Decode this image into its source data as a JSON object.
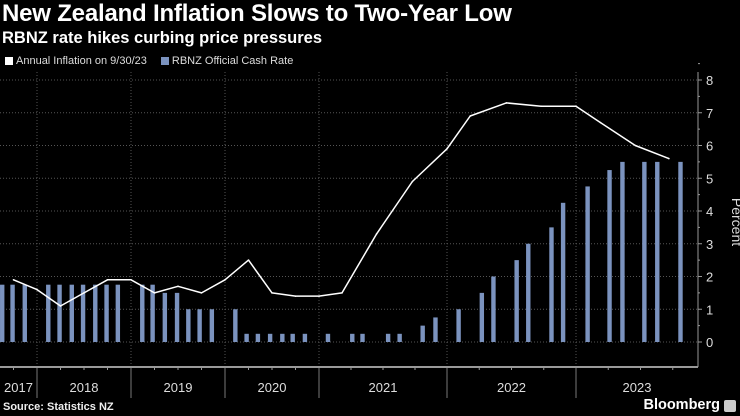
{
  "header": {
    "title": "New Zealand Inflation Slows to Two-Year Low",
    "subtitle": "RBNZ rate hikes curbing price pressures"
  },
  "footer": {
    "source": "Source: Statistics NZ",
    "brand": "Bloomberg"
  },
  "colors": {
    "inflation": "#ffffff",
    "cash_rate": "#7b93bf",
    "grid": "#555555",
    "axis": "#999999"
  },
  "chart_data": {
    "type": "bar+line",
    "title": "New Zealand Inflation Slows to Two-Year Low",
    "subtitle": "RBNZ rate hikes curbing price pressures",
    "ylabel": "Percent",
    "ylim": [
      -0.75,
      8.2
    ],
    "yticks": [
      0,
      1,
      2,
      3,
      4,
      5,
      6,
      7,
      8
    ],
    "xlim": [
      2017.6,
      2023.95
    ],
    "year_labels": [
      "2017",
      "2018",
      "2019",
      "2020",
      "2021",
      "2022",
      "2023"
    ],
    "legend_position": "top-left",
    "grid": true,
    "series": [
      {
        "name": "Annual Inflation on 9/30/23",
        "type": "line",
        "x": [
          2017.75,
          2018.0,
          2018.25,
          2018.5,
          2018.75,
          2019.0,
          2019.25,
          2019.5,
          2019.75,
          2020.0,
          2020.25,
          2020.5,
          2020.75,
          2021.0,
          2021.18,
          2021.45,
          2021.73,
          2022.0,
          2022.18,
          2022.46,
          2022.73,
          2023.0,
          2023.19,
          2023.46,
          2023.72
        ],
        "values": [
          1.9,
          1.6,
          1.1,
          1.5,
          1.9,
          1.9,
          1.5,
          1.7,
          1.5,
          1.9,
          2.5,
          1.5,
          1.4,
          1.4,
          1.5,
          3.3,
          4.9,
          5.9,
          6.9,
          7.3,
          7.2,
          7.2,
          6.7,
          6.0,
          5.6
        ]
      },
      {
        "name": "RBNZ Official Cash Rate",
        "type": "bar",
        "x": [
          2017.63,
          2017.74,
          2017.87,
          2018.12,
          2018.24,
          2018.37,
          2018.49,
          2018.62,
          2018.74,
          2018.86,
          2019.12,
          2019.23,
          2019.36,
          2019.49,
          2019.61,
          2019.73,
          2019.86,
          2020.11,
          2020.23,
          2020.35,
          2020.48,
          2020.61,
          2020.72,
          2020.85,
          2021.07,
          2021.26,
          2021.34,
          2021.54,
          2021.63,
          2021.81,
          2021.91,
          2022.09,
          2022.27,
          2022.36,
          2022.54,
          2022.63,
          2022.81,
          2022.9,
          2023.09,
          2023.26,
          2023.36,
          2023.53,
          2023.63,
          2023.81
        ],
        "values": [
          1.75,
          1.75,
          1.75,
          1.75,
          1.75,
          1.75,
          1.75,
          1.75,
          1.75,
          1.75,
          1.75,
          1.75,
          1.5,
          1.5,
          1.0,
          1.0,
          1.0,
          1.0,
          0.25,
          0.25,
          0.25,
          0.25,
          0.25,
          0.25,
          0.25,
          0.25,
          0.25,
          0.25,
          0.25,
          0.5,
          0.75,
          1.0,
          1.5,
          2.0,
          2.5,
          3.0,
          3.5,
          4.25,
          4.75,
          5.25,
          5.5,
          5.5,
          5.5,
          5.5
        ]
      }
    ]
  }
}
